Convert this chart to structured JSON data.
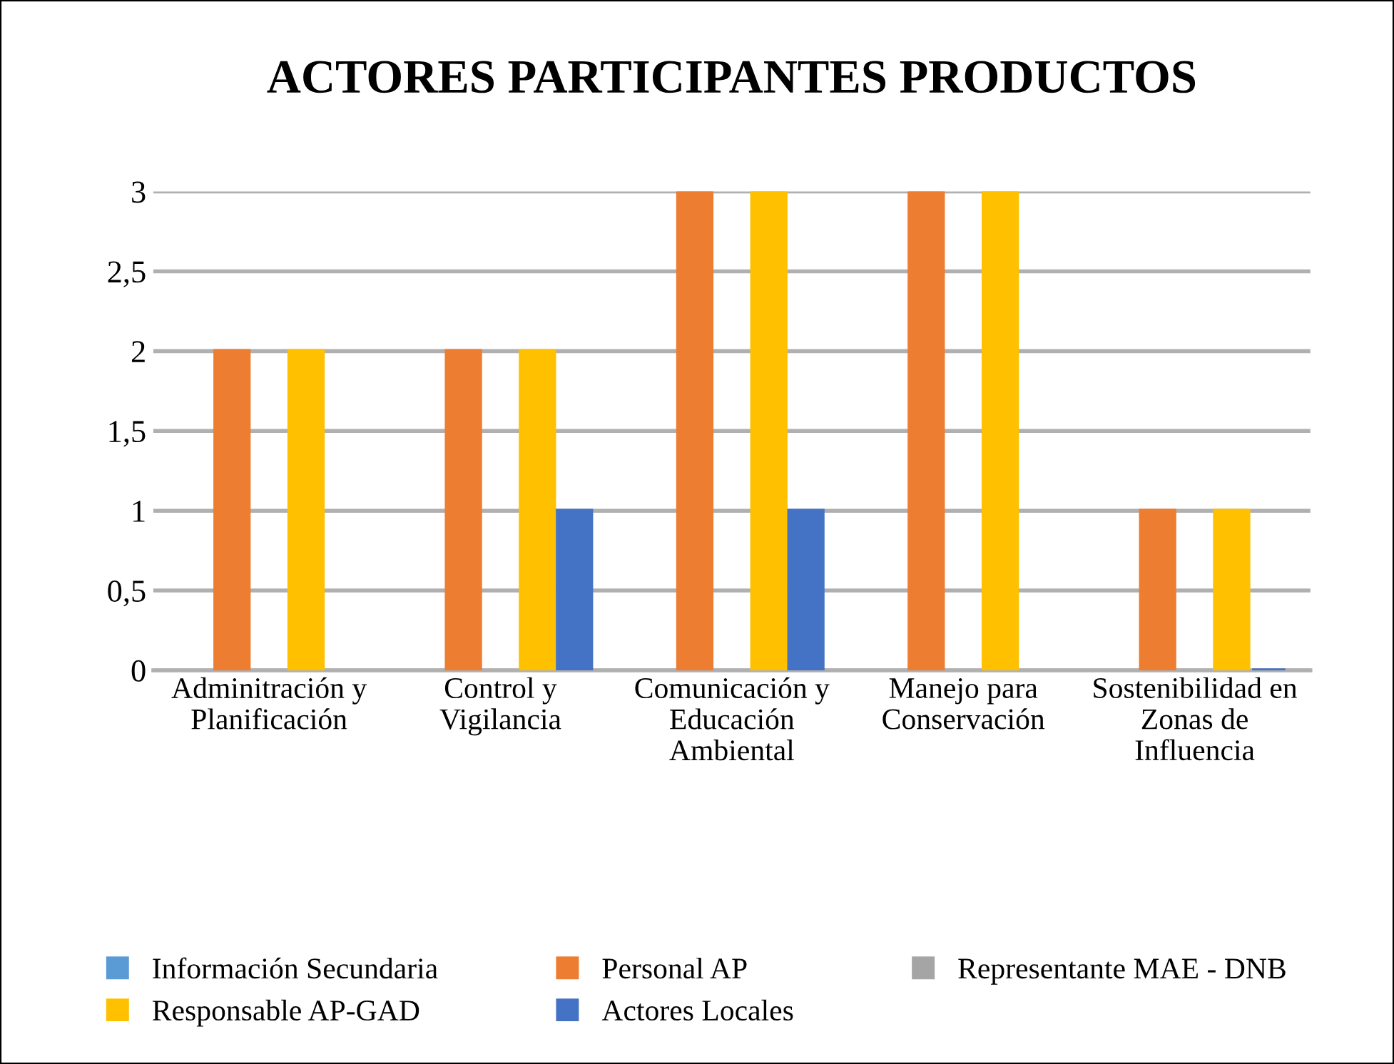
{
  "chart_data": {
    "type": "bar",
    "title": "ACTORES PARTICIPANTES PRODUCTOS",
    "categories": [
      "Adminitración y\nPlanificación",
      "Control y\nVigilancia",
      "Comunicación y\nEducación\nAmbiental",
      "Manejo para\nConservación",
      "Sostenibilidad en\nZonas de\nInfluencia"
    ],
    "series": [
      {
        "name": "Información Secundaria",
        "color": "#5b9bd5",
        "values": [
          null,
          null,
          null,
          null,
          null
        ]
      },
      {
        "name": "Personal AP",
        "color": "#ed7d31",
        "values": [
          2,
          2,
          3,
          3,
          1
        ]
      },
      {
        "name": "Representante MAE - DNB",
        "color": "#a5a5a5",
        "values": [
          null,
          null,
          null,
          null,
          null
        ]
      },
      {
        "name": "Responsable AP-GAD",
        "color": "#ffc000",
        "values": [
          2,
          2,
          3,
          3,
          1
        ]
      },
      {
        "name": "Actores Locales",
        "color": "#4472c4",
        "values": [
          null,
          1,
          1,
          null,
          0
        ]
      }
    ],
    "ylim": [
      0,
      3
    ],
    "yticks": [
      0,
      {
        "value": 0.5,
        "label": "0,5"
      },
      1,
      {
        "value": 1.5,
        "label": "1,5"
      },
      2,
      {
        "value": 2.5,
        "label": "2,5"
      },
      3
    ],
    "grid": "y",
    "legend": "bottom"
  }
}
